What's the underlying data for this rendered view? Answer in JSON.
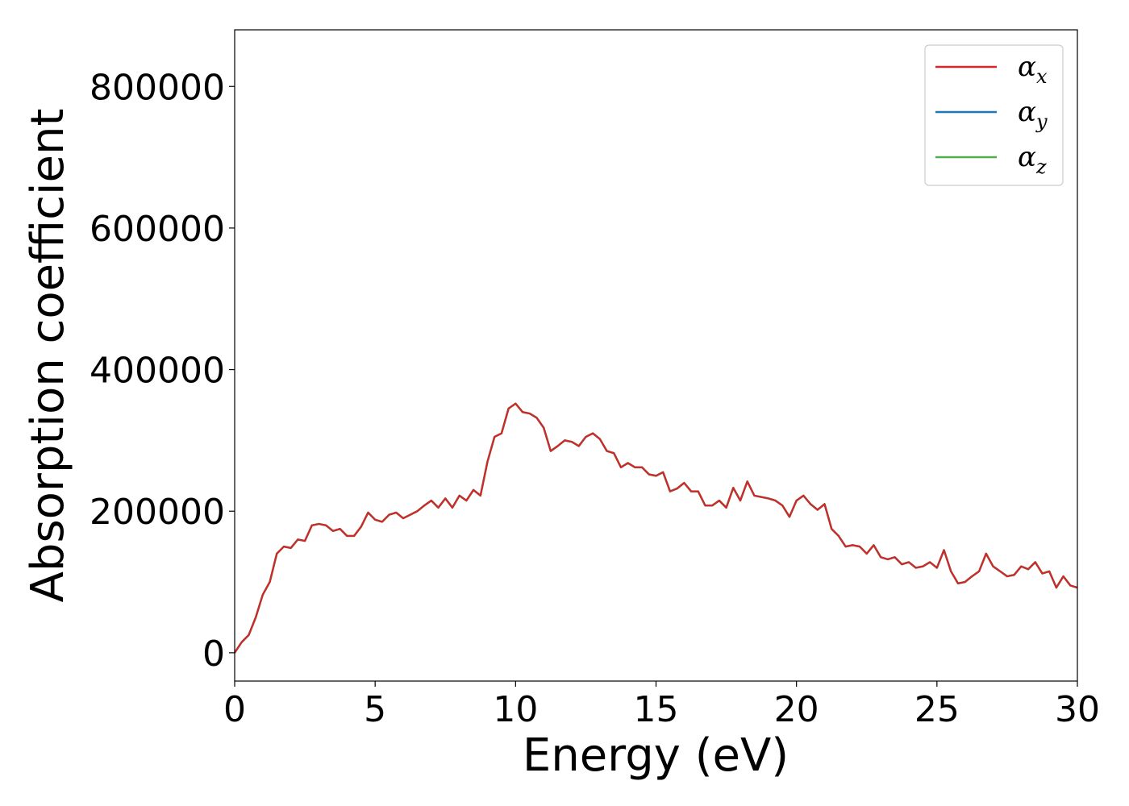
{
  "chart_data": {
    "type": "line",
    "title": "",
    "xlabel": "Energy (eV)",
    "ylabel": "Absorption coefficient",
    "xlim": [
      0,
      30
    ],
    "ylim": [
      -40000,
      880000
    ],
    "xticks": [
      "0",
      "5",
      "10",
      "15",
      "20",
      "25",
      "30"
    ],
    "yticks": [
      "0",
      "200000",
      "400000",
      "600000",
      "800000"
    ],
    "grid": false,
    "legend_position": "top-right",
    "colors": {
      "x": "#d62728",
      "y": "#1f77b4",
      "z": "#4daf4a"
    },
    "legend": [
      {
        "symbol": "α",
        "subscript": "x",
        "color": "#d62728"
      },
      {
        "symbol": "α",
        "subscript": "y",
        "color": "#1f77b4"
      },
      {
        "symbol": "α",
        "subscript": "z",
        "color": "#4daf4a"
      }
    ],
    "series": [
      {
        "key": "z",
        "x": [
          0,
          0.25,
          0.5,
          0.75,
          1.0,
          1.25,
          1.5,
          1.75,
          2.0,
          2.25,
          2.5,
          2.75,
          3.0,
          3.25,
          3.5,
          3.75,
          4.0,
          4.25,
          4.5,
          4.75,
          5.0,
          5.25,
          5.5,
          5.75,
          6.0,
          6.25,
          6.5,
          6.75,
          7.0,
          7.25,
          7.5,
          7.75,
          8.0,
          8.25,
          8.5,
          8.75,
          9.0,
          9.25,
          9.5,
          9.75,
          10.0,
          10.25,
          10.5,
          10.75,
          11.0,
          11.25,
          11.5,
          11.75,
          12.0,
          12.25,
          12.5,
          12.75,
          13.0,
          13.25,
          13.5,
          13.75,
          14.0,
          14.25,
          14.5,
          14.75,
          15.0,
          15.25,
          15.5,
          15.75,
          16.0,
          16.25,
          16.5,
          16.75,
          17.0,
          17.25,
          17.5,
          17.75,
          18.0,
          18.25,
          18.5,
          18.75,
          19.0,
          19.25,
          19.5,
          19.75,
          20.0,
          20.25,
          20.5,
          20.75,
          21.0,
          21.25,
          21.5,
          21.75,
          22.0,
          22.25,
          22.5,
          22.75,
          23.0,
          23.25,
          23.5,
          23.75,
          24.0,
          24.25,
          24.5,
          24.75,
          25.0,
          25.25,
          25.5,
          25.75,
          26.0,
          26.25,
          26.5,
          26.75,
          27.0,
          27.25,
          27.5,
          27.75,
          28.0,
          28.25,
          28.5,
          28.75,
          29.0,
          29.25,
          29.5,
          29.75,
          30.0
        ],
        "y": [
          0,
          15000,
          25000,
          50000,
          82000,
          100000,
          140000,
          150000,
          148000,
          160000,
          158000,
          180000,
          182000,
          180000,
          172000,
          175000,
          165000,
          165000,
          178000,
          198000,
          188000,
          185000,
          195000,
          198000,
          190000,
          195000,
          200000,
          208000,
          215000,
          205000,
          218000,
          205000,
          222000,
          215000,
          230000,
          222000,
          270000,
          305000,
          310000,
          345000,
          352000,
          340000,
          338000,
          332000,
          318000,
          285000,
          292000,
          300000,
          298000,
          292000,
          305000,
          310000,
          302000,
          285000,
          282000,
          262000,
          268000,
          262000,
          262000,
          252000,
          250000,
          255000,
          228000,
          232000,
          240000,
          228000,
          228000,
          208000,
          208000,
          215000,
          205000,
          233000,
          215000,
          242000,
          222000,
          220000,
          218000,
          215000,
          208000,
          192000,
          215000,
          222000,
          210000,
          202000,
          210000,
          175000,
          165000,
          150000,
          152000,
          150000,
          140000,
          152000,
          135000,
          132000,
          135000,
          125000,
          128000,
          120000,
          122000,
          128000,
          120000,
          145000,
          115000,
          98000,
          100000,
          108000,
          115000,
          140000,
          122000,
          115000,
          108000,
          110000,
          122000,
          118000,
          128000,
          112000,
          115000,
          92000,
          108000,
          95000,
          92000
        ]
      },
      {
        "key": "y",
        "x": [
          0,
          0.25,
          0.5,
          0.75,
          1.0,
          1.25,
          1.5,
          1.75,
          2.0,
          2.25,
          2.5,
          2.75,
          3.0,
          3.25,
          3.5,
          3.75,
          4.0,
          4.25,
          4.5,
          4.75,
          5.0,
          5.25,
          5.5,
          5.75,
          6.0,
          6.25,
          6.5,
          6.75,
          7.0,
          7.25,
          7.5,
          7.75,
          8.0,
          8.25,
          8.5,
          8.75,
          9.0,
          9.25,
          9.5,
          9.75,
          10.0,
          10.25,
          10.5,
          10.75,
          11.0,
          11.25,
          11.5,
          11.75,
          12.0,
          12.25,
          12.5,
          12.75,
          13.0,
          13.25,
          13.5,
          13.75,
          14.0,
          14.25,
          14.5,
          14.75,
          15.0,
          15.25,
          15.5,
          15.75,
          16.0,
          16.25,
          16.5,
          16.75,
          17.0,
          17.25,
          17.5,
          17.75,
          18.0,
          18.25,
          18.5,
          18.75,
          19.0,
          19.25,
          19.5,
          19.75,
          20.0,
          20.25,
          20.5,
          20.75,
          21.0,
          21.25,
          21.5,
          21.75,
          22.0,
          22.25,
          22.5,
          22.75,
          23.0,
          23.25,
          23.5,
          23.75,
          24.0,
          24.25,
          24.5,
          24.75,
          25.0,
          25.25,
          25.5,
          25.75,
          26.0,
          26.25,
          26.5,
          26.75,
          27.0,
          27.25,
          27.5,
          27.75,
          28.0,
          28.25,
          28.5,
          28.75,
          29.0,
          29.25,
          29.5,
          29.75,
          30.0
        ],
        "y": [
          0,
          15000,
          25000,
          50000,
          82000,
          100000,
          140000,
          150000,
          148000,
          160000,
          158000,
          180000,
          182000,
          180000,
          172000,
          175000,
          165000,
          165000,
          178000,
          198000,
          188000,
          185000,
          195000,
          198000,
          190000,
          195000,
          200000,
          208000,
          215000,
          205000,
          218000,
          205000,
          222000,
          215000,
          230000,
          222000,
          270000,
          305000,
          310000,
          345000,
          352000,
          340000,
          338000,
          332000,
          318000,
          285000,
          292000,
          300000,
          298000,
          292000,
          305000,
          310000,
          302000,
          285000,
          282000,
          262000,
          268000,
          262000,
          262000,
          252000,
          250000,
          255000,
          228000,
          232000,
          240000,
          228000,
          228000,
          208000,
          208000,
          215000,
          205000,
          233000,
          215000,
          242000,
          222000,
          220000,
          218000,
          215000,
          208000,
          192000,
          215000,
          222000,
          210000,
          202000,
          210000,
          175000,
          165000,
          150000,
          152000,
          150000,
          140000,
          152000,
          135000,
          132000,
          135000,
          125000,
          128000,
          120000,
          122000,
          128000,
          120000,
          145000,
          115000,
          98000,
          100000,
          108000,
          115000,
          140000,
          122000,
          115000,
          108000,
          110000,
          122000,
          118000,
          128000,
          112000,
          115000,
          92000,
          108000,
          95000,
          92000
        ]
      },
      {
        "key": "x",
        "x": [
          0,
          0.25,
          0.5,
          0.75,
          1.0,
          1.25,
          1.5,
          1.75,
          2.0,
          2.25,
          2.5,
          2.75,
          3.0,
          3.25,
          3.5,
          3.75,
          4.0,
          4.25,
          4.5,
          4.75,
          5.0,
          5.25,
          5.5,
          5.75,
          6.0,
          6.25,
          6.5,
          6.75,
          7.0,
          7.25,
          7.5,
          7.75,
          8.0,
          8.25,
          8.5,
          8.75,
          9.0,
          9.25,
          9.5,
          9.75,
          10.0,
          10.25,
          10.5,
          10.75,
          11.0,
          11.25,
          11.5,
          11.75,
          12.0,
          12.25,
          12.5,
          12.75,
          13.0,
          13.25,
          13.5,
          13.75,
          14.0,
          14.25,
          14.5,
          14.75,
          15.0,
          15.25,
          15.5,
          15.75,
          16.0,
          16.25,
          16.5,
          16.75,
          17.0,
          17.25,
          17.5,
          17.75,
          18.0,
          18.25,
          18.5,
          18.75,
          19.0,
          19.25,
          19.5,
          19.75,
          20.0,
          20.25,
          20.5,
          20.75,
          21.0,
          21.25,
          21.5,
          21.75,
          22.0,
          22.25,
          22.5,
          22.75,
          23.0,
          23.25,
          23.5,
          23.75,
          24.0,
          24.25,
          24.5,
          24.75,
          25.0,
          25.25,
          25.5,
          25.75,
          26.0,
          26.25,
          26.5,
          26.75,
          27.0,
          27.25,
          27.5,
          27.75,
          28.0,
          28.25,
          28.5,
          28.75,
          29.0,
          29.25,
          29.5,
          29.75,
          30.0
        ],
        "y": [
          0,
          15000,
          25000,
          50000,
          82000,
          100000,
          140000,
          150000,
          148000,
          160000,
          158000,
          180000,
          182000,
          180000,
          172000,
          175000,
          165000,
          165000,
          178000,
          198000,
          188000,
          185000,
          195000,
          198000,
          190000,
          195000,
          200000,
          208000,
          215000,
          205000,
          218000,
          205000,
          222000,
          215000,
          230000,
          222000,
          270000,
          305000,
          310000,
          345000,
          352000,
          340000,
          338000,
          332000,
          318000,
          285000,
          292000,
          300000,
          298000,
          292000,
          305000,
          310000,
          302000,
          285000,
          282000,
          262000,
          268000,
          262000,
          262000,
          252000,
          250000,
          255000,
          228000,
          232000,
          240000,
          228000,
          228000,
          208000,
          208000,
          215000,
          205000,
          233000,
          215000,
          242000,
          222000,
          220000,
          218000,
          215000,
          208000,
          192000,
          215000,
          222000,
          210000,
          202000,
          210000,
          175000,
          165000,
          150000,
          152000,
          150000,
          140000,
          152000,
          135000,
          132000,
          135000,
          125000,
          128000,
          120000,
          122000,
          128000,
          120000,
          145000,
          115000,
          98000,
          100000,
          108000,
          115000,
          140000,
          122000,
          115000,
          108000,
          110000,
          122000,
          118000,
          128000,
          112000,
          115000,
          92000,
          108000,
          95000,
          92000
        ]
      }
    ]
  }
}
